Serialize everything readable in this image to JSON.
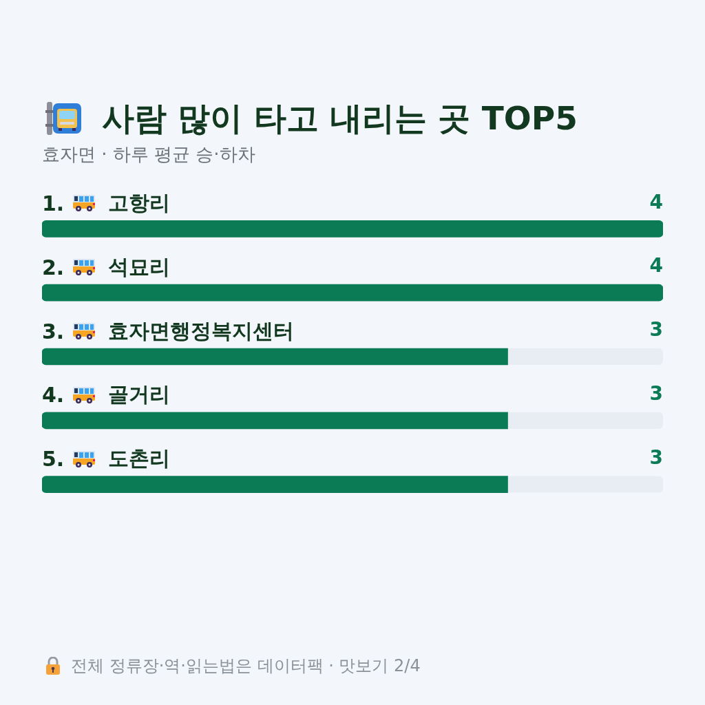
{
  "chart_data": {
    "type": "bar",
    "orientation": "horizontal",
    "title": "사람 많이 타고 내리는 곳 TOP5",
    "subtitle": "효자면 · 하루 평균 승·하차",
    "categories": [
      "1. 고항리",
      "2. 석묘리",
      "3. 효자면행정복지센터",
      "4. 골거리",
      "5. 도촌리"
    ],
    "values": [
      4,
      4,
      3,
      3,
      3
    ],
    "color": "#0b7b55",
    "xlim": [
      0,
      4
    ],
    "data_labels": true,
    "tick_labels": "y",
    "annotations": [
      "전체 정류장·역·읽는법은 데이터팩 · 맛보기 2/4"
    ]
  }
}
